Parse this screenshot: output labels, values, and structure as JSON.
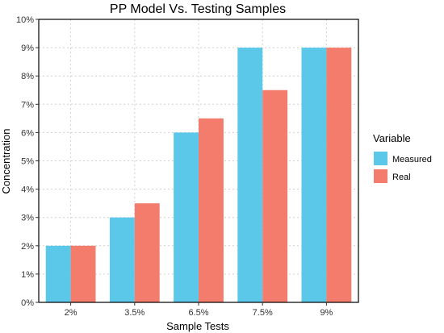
{
  "chart_data": {
    "type": "bar",
    "title": "PP Model Vs. Testing Samples",
    "xlabel": "Sample Tests",
    "ylabel": "Concentration",
    "categories": [
      "2%",
      "3.5%",
      "6.5%",
      "7.5%",
      "9%"
    ],
    "series": [
      {
        "name": "Measured",
        "values": [
          2,
          3,
          6,
          9,
          9
        ],
        "color": "#5bc8ea"
      },
      {
        "name": "Real",
        "values": [
          2,
          3.5,
          6.5,
          7.5,
          9
        ],
        "color": "#f47c6c"
      }
    ],
    "ylim": [
      0,
      10
    ],
    "yticks": [
      0,
      1,
      2,
      3,
      4,
      5,
      6,
      7,
      8,
      9,
      10
    ],
    "ytick_labels": [
      "0%",
      "1%",
      "2%",
      "3%",
      "4%",
      "5%",
      "6%",
      "7%",
      "8%",
      "9%",
      "10%"
    ],
    "grid": true,
    "legend": {
      "title": "Variable",
      "placement": "right"
    }
  }
}
